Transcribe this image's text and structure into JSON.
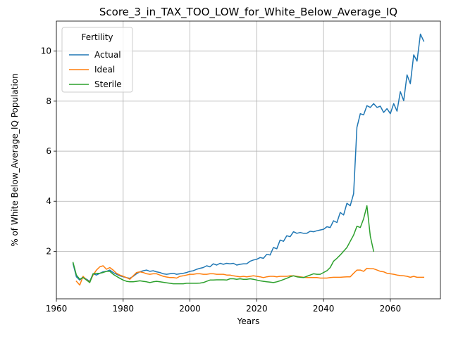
{
  "chart_data": {
    "type": "line",
    "title": "Score_3_in_TAX_TOO_LOW_for_White_Below_Average_IQ",
    "xlabel": "Years",
    "ylabel": "% of White Below_Average_IQ Population",
    "xlim": [
      1960,
      2075
    ],
    "ylim": [
      0.1,
      11.2
    ],
    "xticks": [
      1960,
      1980,
      2000,
      2020,
      2040,
      2060
    ],
    "yticks": [
      2,
      4,
      6,
      8,
      10
    ],
    "grid": true,
    "legend": {
      "title": "Fertility",
      "position": "upper-left"
    },
    "series": [
      {
        "name": "Actual",
        "color": "#1f77b4",
        "x": [
          1965,
          1966,
          1967,
          1968,
          1969,
          1970,
          1971,
          1972,
          1973,
          1974,
          1975,
          1976,
          1977,
          1978,
          1979,
          1980,
          1981,
          1982,
          1983,
          1984,
          1985,
          1986,
          1987,
          1988,
          1989,
          1990,
          1991,
          1992,
          1993,
          1994,
          1995,
          1996,
          1997,
          1998,
          1999,
          2000,
          2001,
          2002,
          2003,
          2004,
          2005,
          2006,
          2007,
          2008,
          2009,
          2010,
          2011,
          2012,
          2013,
          2014,
          2015,
          2016,
          2017,
          2018,
          2019,
          2020,
          2021,
          2022,
          2023,
          2024,
          2025,
          2026,
          2027,
          2028,
          2029,
          2030,
          2031,
          2032,
          2033,
          2034,
          2035,
          2036,
          2037,
          2038,
          2039,
          2040,
          2041,
          2042,
          2043,
          2044,
          2045,
          2046,
          2047,
          2048,
          2049,
          2050,
          2051,
          2052,
          2053,
          2054,
          2055,
          2056,
          2057,
          2058,
          2059,
          2060,
          2061,
          2062,
          2063,
          2064,
          2065,
          2066,
          2067,
          2068,
          2069,
          2070
        ],
        "values": [
          1.5,
          0.98,
          0.85,
          0.98,
          0.88,
          0.8,
          1.1,
          1.05,
          1.12,
          1.18,
          1.2,
          1.25,
          1.15,
          1.08,
          1.02,
          0.98,
          0.95,
          0.92,
          1.0,
          1.1,
          1.18,
          1.22,
          1.25,
          1.2,
          1.22,
          1.18,
          1.15,
          1.1,
          1.08,
          1.1,
          1.12,
          1.08,
          1.1,
          1.12,
          1.15,
          1.2,
          1.22,
          1.28,
          1.32,
          1.35,
          1.42,
          1.38,
          1.5,
          1.45,
          1.52,
          1.48,
          1.52,
          1.5,
          1.52,
          1.45,
          1.48,
          1.5,
          1.5,
          1.6,
          1.65,
          1.68,
          1.75,
          1.72,
          1.88,
          1.85,
          2.15,
          2.1,
          2.45,
          2.4,
          2.62,
          2.58,
          2.78,
          2.72,
          2.75,
          2.72,
          2.72,
          2.8,
          2.78,
          2.82,
          2.85,
          2.88,
          2.98,
          2.95,
          3.22,
          3.15,
          3.55,
          3.45,
          3.92,
          3.82,
          4.3,
          6.95,
          7.5,
          7.45,
          7.82,
          7.75,
          7.9,
          7.75,
          7.8,
          7.55,
          7.7,
          7.5,
          7.9,
          7.6,
          8.38,
          8.02,
          9.05,
          8.7,
          9.85,
          9.6,
          10.68,
          10.4
        ]
      },
      {
        "name": "Ideal",
        "color": "#ff7f0e",
        "x": [
          1966,
          1967,
          1968,
          1969,
          1970,
          1971,
          1972,
          1973,
          1974,
          1975,
          1976,
          1977,
          1978,
          1979,
          1980,
          1981,
          1982,
          1983,
          1984,
          1985,
          1986,
          1987,
          1988,
          1989,
          1990,
          1991,
          1992,
          1993,
          1994,
          1995,
          1996,
          1997,
          1998,
          1999,
          2000,
          2001,
          2002,
          2003,
          2004,
          2005,
          2006,
          2007,
          2008,
          2009,
          2010,
          2011,
          2012,
          2013,
          2014,
          2015,
          2016,
          2017,
          2018,
          2019,
          2020,
          2021,
          2022,
          2023,
          2024,
          2025,
          2026,
          2027,
          2028,
          2029,
          2030,
          2031,
          2032,
          2033,
          2034,
          2035,
          2036,
          2037,
          2038,
          2039,
          2040,
          2041,
          2042,
          2043,
          2044,
          2045,
          2046,
          2047,
          2048,
          2049,
          2050,
          2051,
          2052,
          2053,
          2054,
          2055,
          2056,
          2057,
          2058,
          2059,
          2060,
          2061,
          2062,
          2063,
          2064,
          2065,
          2066,
          2067,
          2068,
          2069,
          2070
        ],
        "values": [
          0.8,
          0.65,
          1.0,
          0.85,
          0.78,
          1.05,
          1.25,
          1.38,
          1.42,
          1.28,
          1.35,
          1.25,
          1.12,
          1.05,
          1.0,
          0.95,
          0.88,
          1.02,
          1.15,
          1.18,
          1.15,
          1.1,
          1.08,
          1.1,
          1.1,
          1.05,
          1.0,
          0.97,
          0.95,
          0.95,
          0.93,
          1.0,
          1.02,
          1.05,
          1.08,
          1.08,
          1.1,
          1.1,
          1.08,
          1.08,
          1.1,
          1.1,
          1.08,
          1.08,
          1.08,
          1.05,
          1.05,
          1.02,
          1.0,
          0.98,
          1.0,
          0.98,
          1.0,
          1.02,
          1.0,
          0.98,
          0.95,
          0.98,
          1.0,
          1.0,
          0.98,
          1.0,
          1.0,
          1.0,
          1.02,
          1.02,
          1.0,
          0.98,
          0.96,
          0.95,
          0.95,
          0.95,
          0.95,
          0.93,
          0.93,
          0.93,
          0.95,
          0.96,
          0.96,
          0.96,
          0.97,
          0.98,
          0.98,
          1.12,
          1.25,
          1.25,
          1.2,
          1.32,
          1.3,
          1.3,
          1.25,
          1.2,
          1.18,
          1.12,
          1.1,
          1.08,
          1.05,
          1.03,
          1.02,
          1.0,
          0.96,
          1.0,
          0.96,
          0.96,
          0.96
        ]
      },
      {
        "name": "Sterile",
        "color": "#2ca02c",
        "x": [
          1965,
          1966,
          1967,
          1968,
          1969,
          1970,
          1971,
          1972,
          1973,
          1974,
          1975,
          1976,
          1977,
          1978,
          1979,
          1980,
          1981,
          1982,
          1983,
          1984,
          1985,
          1986,
          1987,
          1988,
          1989,
          1990,
          1991,
          1992,
          1993,
          1994,
          1995,
          1996,
          1997,
          1998,
          1999,
          2000,
          2001,
          2002,
          2003,
          2004,
          2005,
          2006,
          2007,
          2008,
          2009,
          2010,
          2011,
          2012,
          2013,
          2014,
          2015,
          2016,
          2017,
          2018,
          2019,
          2020,
          2021,
          2022,
          2023,
          2024,
          2025,
          2026,
          2027,
          2028,
          2029,
          2030,
          2031,
          2032,
          2033,
          2034,
          2035,
          2036,
          2037,
          2038,
          2039,
          2040,
          2041,
          2042,
          2043,
          2044,
          2045,
          2046,
          2047,
          2048,
          2049,
          2050,
          2051,
          2052,
          2053,
          2054,
          2055
        ],
        "values": [
          1.55,
          1.05,
          0.88,
          0.95,
          0.85,
          0.75,
          1.1,
          1.12,
          1.12,
          1.15,
          1.2,
          1.2,
          1.08,
          1.0,
          0.92,
          0.85,
          0.8,
          0.78,
          0.78,
          0.8,
          0.82,
          0.8,
          0.78,
          0.75,
          0.78,
          0.8,
          0.78,
          0.76,
          0.74,
          0.72,
          0.7,
          0.7,
          0.7,
          0.7,
          0.72,
          0.72,
          0.72,
          0.72,
          0.73,
          0.75,
          0.8,
          0.85,
          0.85,
          0.86,
          0.86,
          0.86,
          0.85,
          0.9,
          0.9,
          0.88,
          0.9,
          0.88,
          0.88,
          0.9,
          0.88,
          0.85,
          0.82,
          0.8,
          0.78,
          0.77,
          0.75,
          0.78,
          0.82,
          0.87,
          0.92,
          0.98,
          1.02,
          0.98,
          0.96,
          0.95,
          1.0,
          1.05,
          1.1,
          1.08,
          1.08,
          1.15,
          1.22,
          1.35,
          1.6,
          1.72,
          1.85,
          2.0,
          2.15,
          2.4,
          2.65,
          3.0,
          2.95,
          3.3,
          3.82,
          2.6,
          2.0
        ]
      }
    ]
  }
}
